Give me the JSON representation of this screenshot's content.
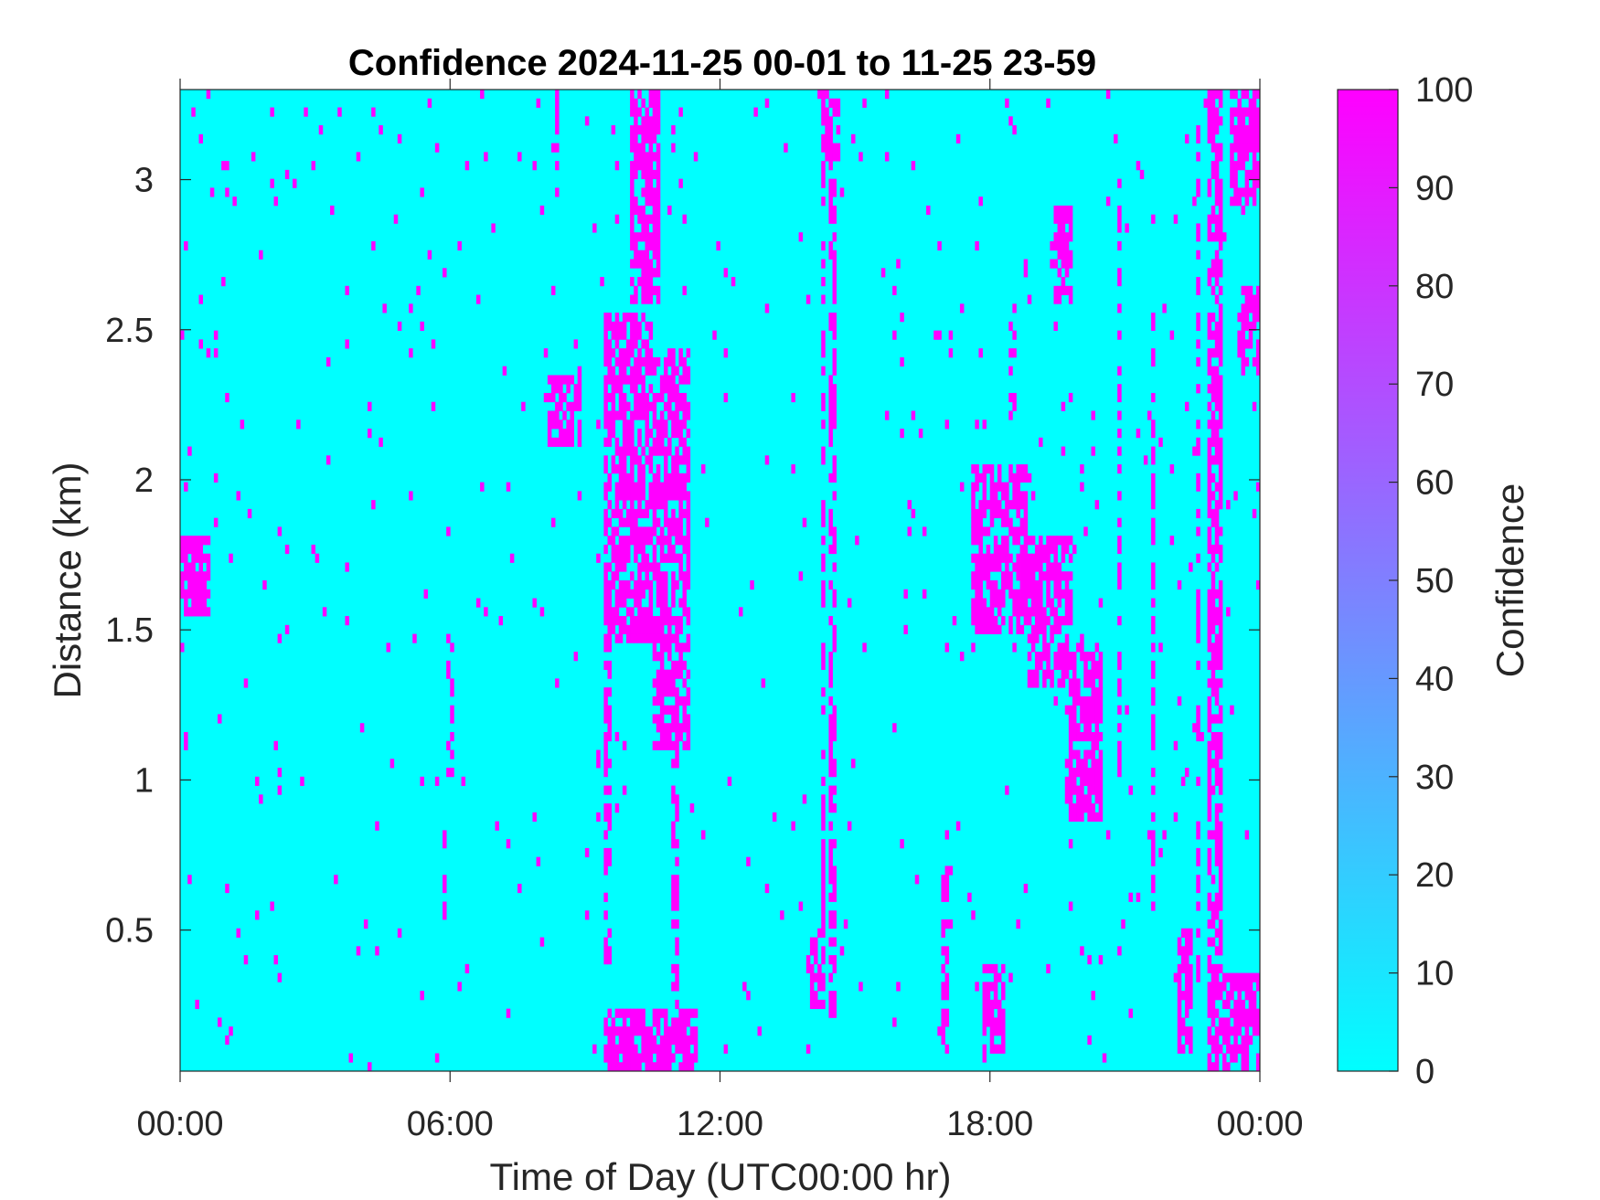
{
  "colors": {
    "low": "#00ffff",
    "high": "#ff00ff",
    "axis": "#262626",
    "background": "#ffffff"
  },
  "chart_data": {
    "type": "heatmap",
    "title": "Confidence 2024-11-25 00-01 to 11-25 23-59",
    "xlabel": "Time of Day (UTC00:00 hr)",
    "ylabel": "Distance (km)",
    "xlim": [
      0,
      24
    ],
    "ylim": [
      0.03,
      3.3
    ],
    "x_ticks": [
      0,
      6,
      12,
      18,
      24
    ],
    "x_tick_labels": [
      "00:00",
      "06:00",
      "12:00",
      "18:00",
      "00:00"
    ],
    "y_ticks": [
      0.5,
      1,
      1.5,
      2,
      2.5,
      3
    ],
    "y_tick_labels": [
      "0.5",
      "1",
      "1.5",
      "2",
      "2.5",
      "3"
    ],
    "colorbar": {
      "label": "Confidence",
      "range": [
        0,
        100
      ],
      "ticks": [
        0,
        10,
        20,
        30,
        40,
        50,
        60,
        70,
        80,
        90,
        100
      ],
      "tick_labels": [
        "0",
        "10",
        "20",
        "30",
        "40",
        "50",
        "60",
        "70",
        "80",
        "90",
        "100"
      ],
      "colormap": "cool"
    },
    "background_value": 0,
    "high_confidence_value": 100,
    "high_confidence_regions": [
      {
        "t": [
          0.0,
          0.7
        ],
        "d": [
          1.55,
          1.8
        ]
      },
      {
        "t": [
          9.4,
          10.5
        ],
        "d": [
          1.45,
          2.55
        ]
      },
      {
        "t": [
          10.5,
          11.3
        ],
        "d": [
          1.1,
          2.45
        ]
      },
      {
        "t": [
          9.4,
          11.5
        ],
        "d": [
          0.03,
          0.25
        ]
      },
      {
        "t": [
          8.2,
          8.9
        ],
        "d": [
          2.1,
          2.35
        ]
      },
      {
        "t": [
          10.0,
          10.7
        ],
        "d": [
          2.6,
          3.3
        ]
      },
      {
        "t": [
          14.3,
          14.7
        ],
        "d": [
          3.05,
          3.3
        ]
      },
      {
        "t": [
          13.9,
          14.3
        ],
        "d": [
          0.25,
          0.5
        ]
      },
      {
        "t": [
          17.6,
          18.8
        ],
        "d": [
          1.5,
          2.05
        ]
      },
      {
        "t": [
          18.8,
          19.8
        ],
        "d": [
          1.3,
          1.8
        ]
      },
      {
        "t": [
          19.7,
          20.5
        ],
        "d": [
          0.85,
          1.45
        ]
      },
      {
        "t": [
          17.8,
          18.3
        ],
        "d": [
          0.1,
          0.4
        ]
      },
      {
        "t": [
          22.8,
          23.2
        ],
        "d": [
          0.03,
          3.3
        ]
      },
      {
        "t": [
          23.2,
          24.0
        ],
        "d": [
          0.03,
          0.35
        ]
      },
      {
        "t": [
          23.5,
          24.0
        ],
        "d": [
          2.35,
          2.65
        ]
      },
      {
        "t": [
          23.3,
          24.0
        ],
        "d": [
          2.9,
          3.3
        ]
      },
      {
        "t": [
          19.4,
          19.8
        ],
        "d": [
          2.6,
          2.9
        ]
      },
      {
        "t": [
          22.2,
          22.5
        ],
        "d": [
          0.1,
          0.5
        ]
      }
    ],
    "high_confidence_streaks": [
      {
        "t": 11.0,
        "d": [
          0.03,
          1.2
        ]
      },
      {
        "t": 14.3,
        "d": [
          0.5,
          3.3
        ]
      },
      {
        "t": 14.5,
        "d": [
          0.2,
          3.2
        ]
      },
      {
        "t": 9.5,
        "d": [
          0.4,
          1.6
        ]
      },
      {
        "t": 8.4,
        "d": [
          2.9,
          3.3
        ]
      },
      {
        "t": 20.9,
        "d": [
          1.0,
          3.0
        ]
      },
      {
        "t": 21.6,
        "d": [
          0.5,
          2.6
        ]
      },
      {
        "t": 22.6,
        "d": [
          0.3,
          3.2
        ]
      },
      {
        "t": 17.0,
        "d": [
          0.1,
          0.7
        ]
      },
      {
        "t": 6.0,
        "d": [
          1.0,
          1.5
        ]
      },
      {
        "t": 5.9,
        "d": [
          0.5,
          0.9
        ]
      },
      {
        "t": 18.5,
        "d": [
          2.2,
          2.6
        ]
      }
    ],
    "scatter_density": 0.014
  }
}
